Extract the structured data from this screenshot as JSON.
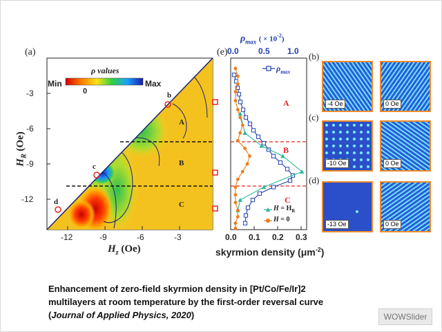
{
  "figure": {
    "panel_a": {
      "label": "(a)",
      "colorbar_title": "ρ values",
      "colorbar_min": "Min",
      "colorbar_max": "Max",
      "colorbar_zero": "0",
      "y_axis_label": "H",
      "y_axis_sub": "R",
      "y_axis_unit": "(Oe)",
      "x_axis_label": "H",
      "x_axis_sub": "z",
      "x_axis_unit": "(Oe)",
      "y_ticks": [
        "-3",
        "-6",
        "-9",
        "-12"
      ],
      "x_ticks": [
        "-12",
        "-9",
        "-6",
        "-3"
      ],
      "regions": [
        "A",
        "B",
        "C"
      ],
      "points": [
        "b",
        "c",
        "d"
      ]
    },
    "panel_e": {
      "label": "(e)",
      "top_axis_label": "ρ",
      "top_axis_sub": "max",
      "top_axis_unit": "( × 10",
      "top_axis_exp": "-2",
      "top_axis_close": ")",
      "top_ticks": [
        "0.0",
        "0.5",
        "1.0"
      ],
      "bottom_axis_label": "skyrmion density (μm",
      "bottom_axis_exp": "-2",
      "bottom_axis_close": ")",
      "bottom_ticks": [
        "0.0",
        "0.1",
        "0.2",
        "0.3"
      ],
      "legend_rho": "ρ",
      "legend_rho_sub": "max",
      "legend_hr_a": "H",
      "legend_hr_b": " = H",
      "legend_hr_sub": "R",
      "legend_h0": "H",
      "legend_h0_rest": " = 0",
      "regions": [
        "A",
        "B",
        "C"
      ]
    },
    "thumbnails": [
      {
        "label": "(b)",
        "left": "-4 Oe",
        "right": "0 Oe"
      },
      {
        "label": "(c)",
        "left": "-10 Oe",
        "right": "0 Oe"
      },
      {
        "label": "(d)",
        "left": "-13 Oe",
        "right": "0 Oe"
      }
    ],
    "chart_data": {
      "type": "line",
      "title": "",
      "xlabel": "skyrmion density (μm-2)",
      "x2label": "ρmax (×10-2)",
      "ylabel": "HR (Oe)",
      "xlim": [
        0,
        0.32
      ],
      "x2lim": [
        0,
        1.1
      ],
      "ylim": [
        -14.5,
        -1.2
      ],
      "series": [
        {
          "name": "ρmax",
          "axis": "top",
          "marker": "open-square",
          "x": [
            0.05,
            0.08,
            0.1,
            0.12,
            0.14,
            0.18,
            0.22,
            0.28,
            0.33,
            0.4,
            0.48,
            0.55,
            0.62,
            0.72,
            0.82,
            0.9,
            0.86,
            0.62,
            0.42,
            0.32,
            0.25,
            0.22,
            0.21
          ],
          "y": [
            -2.5,
            -3.0,
            -3.5,
            -4.0,
            -4.6,
            -5.2,
            -5.8,
            -6.3,
            -6.8,
            -7.3,
            -7.8,
            -8.3,
            -8.8,
            -9.3,
            -9.8,
            -10.3,
            -10.7,
            -11.2,
            -11.7,
            -12.2,
            -12.8,
            -13.4,
            -14.0
          ]
        },
        {
          "name": "H = HR",
          "axis": "bottom",
          "marker": "filled-triangle",
          "x": [
            0.04,
            0.06,
            0.13,
            0.22,
            0.3,
            0.14,
            0.04,
            0.03
          ],
          "y": [
            -5.5,
            -7.0,
            -8.0,
            -8.8,
            -10.0,
            -11.2,
            -12.2,
            -13.0
          ]
        },
        {
          "name": "H = 0",
          "axis": "bottom",
          "marker": "filled-circle",
          "x": [
            0.02,
            0.03,
            0.03,
            0.02,
            0.02,
            0.03,
            0.04,
            0.05,
            0.04,
            0.03,
            0.06,
            0.08,
            0.07,
            0.05,
            0.03,
            0.02,
            0.02,
            0.02,
            0.03,
            0.03,
            0.02,
            0.02
          ],
          "y": [
            -2.0,
            -2.6,
            -3.2,
            -3.8,
            -4.5,
            -5.2,
            -5.8,
            -6.4,
            -7.0,
            -7.6,
            -8.2,
            -8.8,
            -9.4,
            -10.0,
            -10.6,
            -11.2,
            -11.8,
            -12.4,
            -13.0,
            -13.5,
            -14.0,
            -14.4
          ]
        }
      ],
      "annotations": [
        "A",
        "B",
        "C"
      ]
    },
    "colors": {
      "accent_blue": "#1f3fb5",
      "orange": "#ee7c1a",
      "teal": "#2bb89a",
      "red_dash": "#e02424",
      "thumb_border": "#f08a2a"
    }
  },
  "caption": {
    "line1": "Enhancement of zero-field skyrmion density in [Pt/Co/Fe/Ir]2",
    "line2": "multilayers at room temperature by the first-order reversal curve",
    "journal": "Journal of Applied Physics, 2020",
    "open": "(",
    "close": ")"
  },
  "watermark": "WOWSlider"
}
